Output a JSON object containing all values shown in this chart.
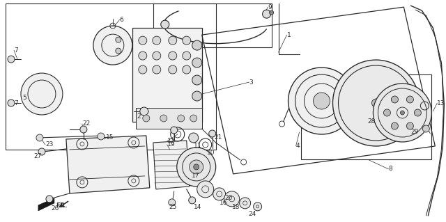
{
  "bg_color": "#ffffff",
  "line_color": "#2a2a2a",
  "fig_width": 6.4,
  "fig_height": 3.19,
  "dpi": 100
}
